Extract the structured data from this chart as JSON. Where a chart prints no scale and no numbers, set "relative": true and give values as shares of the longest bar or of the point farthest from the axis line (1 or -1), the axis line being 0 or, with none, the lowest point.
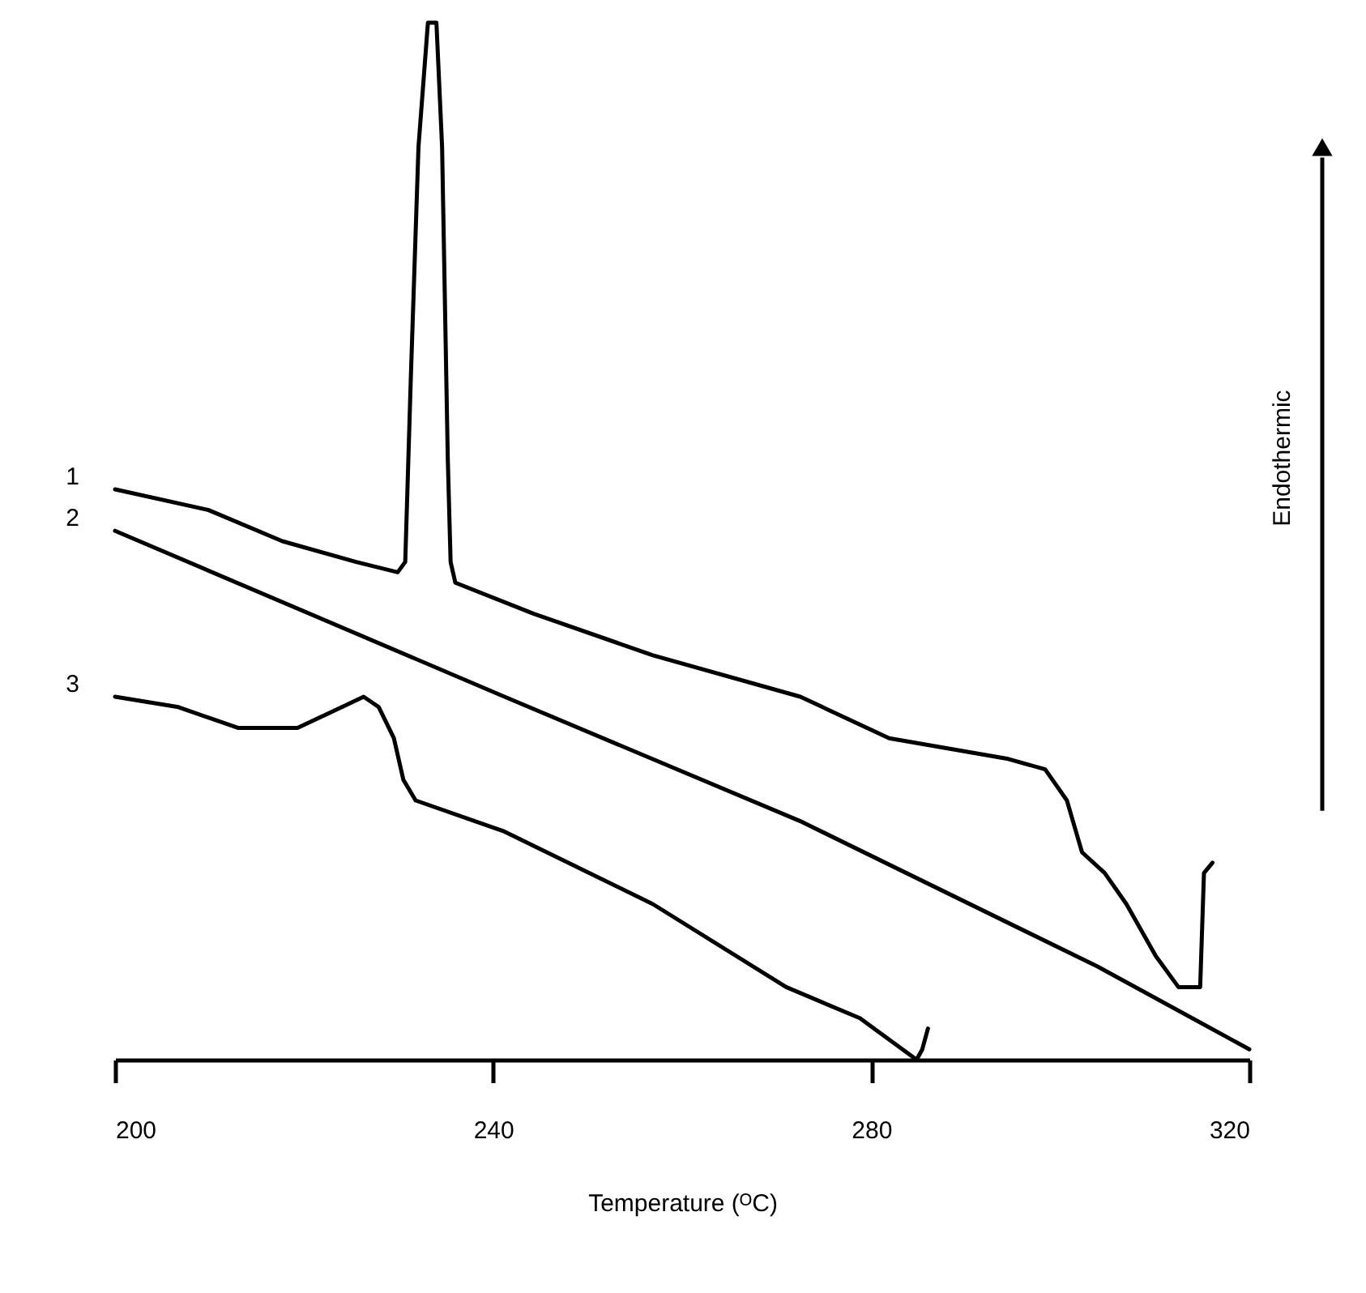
{
  "chart_data": {
    "type": "line",
    "relative": true,
    "xlabel": "Temperature (ᴼC)",
    "xlim": [
      200,
      320
    ],
    "xticks": [
      200,
      240,
      280,
      320
    ],
    "grid": false,
    "annotations": [
      "Endothermic"
    ],
    "series": [
      {
        "name": "1",
        "color": "#000000",
        "x": [
          200,
          209.9,
          217.7,
          225.5,
          229.9,
          230.7,
          231.3,
          232.1,
          233.1,
          234.0,
          234.6,
          235.2,
          235.5,
          236.0,
          244.3,
          256.9,
          272.5,
          281.9,
          288.2,
          294.5,
          298.4,
          300.7,
          302.3,
          304.7,
          307.0,
          310.1,
          312.5,
          313.6,
          314.8,
          315.2,
          316.1
        ],
        "values": [
          0.55,
          0.53,
          0.5,
          0.48,
          0.47,
          0.48,
          0.66,
          0.88,
          1.0,
          1.0,
          0.88,
          0.58,
          0.48,
          0.46,
          0.43,
          0.39,
          0.35,
          0.31,
          0.3,
          0.29,
          0.28,
          0.25,
          0.2,
          0.18,
          0.15,
          0.1,
          0.07,
          0.07,
          0.07,
          0.18,
          0.19
        ]
      },
      {
        "name": "2",
        "color": "#000000",
        "x": [
          200,
          241.2,
          272.5,
          303.9,
          320
        ],
        "values": [
          0.51,
          0.35,
          0.23,
          0.09,
          0.01
        ]
      },
      {
        "name": "3",
        "color": "#000000",
        "x": [
          200,
          206.7,
          213.0,
          219.3,
          224.0,
          226.3,
          227.9,
          229.5,
          230.5,
          231.8,
          241.2,
          256.9,
          271.0,
          278.8,
          284.8,
          285.4,
          286.0
        ],
        "values": [
          0.35,
          0.34,
          0.32,
          0.32,
          0.34,
          0.35,
          0.34,
          0.31,
          0.27,
          0.25,
          0.22,
          0.15,
          0.07,
          0.04,
          0.0,
          0.01,
          0.03
        ]
      }
    ]
  }
}
